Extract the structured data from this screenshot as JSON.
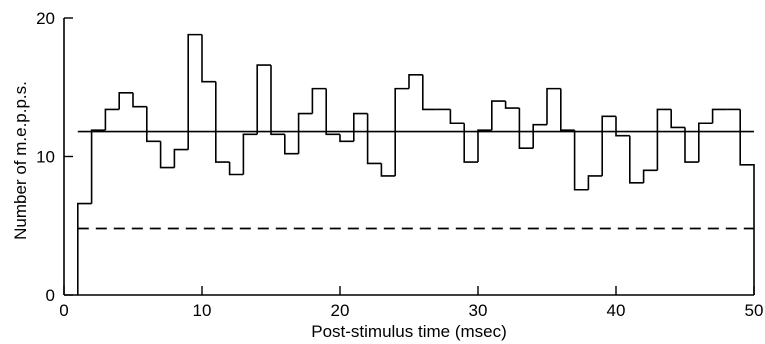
{
  "chart_data": {
    "type": "histogram",
    "title": "",
    "xlabel": "Post-stimulus time (msec)",
    "ylabel": "Number of m.e.p.p.s.",
    "xlim": [
      0,
      50
    ],
    "ylim": [
      0,
      20
    ],
    "xticks": [
      0,
      10,
      20,
      30,
      40,
      50
    ],
    "yticks": [
      0,
      10,
      20
    ],
    "grid": false,
    "bin_edges": [
      1,
      2,
      3,
      4,
      5,
      6,
      7,
      8,
      9,
      10,
      11,
      12,
      13,
      14,
      15,
      16,
      17,
      18,
      19,
      20,
      21,
      22,
      23,
      24,
      25,
      26,
      27,
      28,
      29,
      30,
      31,
      32,
      33,
      34,
      35,
      36,
      37,
      38,
      39,
      40,
      41,
      42,
      43,
      44,
      45,
      46,
      47,
      48,
      49,
      50
    ],
    "values": [
      6.6,
      11.9,
      13.4,
      14.6,
      13.6,
      11.1,
      9.2,
      10.5,
      18.8,
      15.4,
      9.6,
      8.7,
      11.6,
      16.6,
      11.6,
      10.2,
      13.1,
      14.9,
      11.6,
      11.1,
      13.1,
      9.5,
      8.6,
      14.9,
      15.9,
      13.4,
      13.4,
      12.4,
      9.6,
      11.9,
      14.0,
      13.5,
      10.6,
      12.3,
      14.9,
      11.9,
      7.6,
      8.6,
      12.9,
      11.5,
      8.1,
      9.0,
      13.4,
      12.1,
      9.6,
      12.4,
      13.4,
      13.4,
      9.4
    ],
    "reference_lines": [
      {
        "style": "solid",
        "y": 11.8,
        "x_range": [
          1,
          50
        ]
      },
      {
        "style": "dashed",
        "y": 4.8,
        "x_range": [
          1,
          50
        ]
      }
    ]
  }
}
